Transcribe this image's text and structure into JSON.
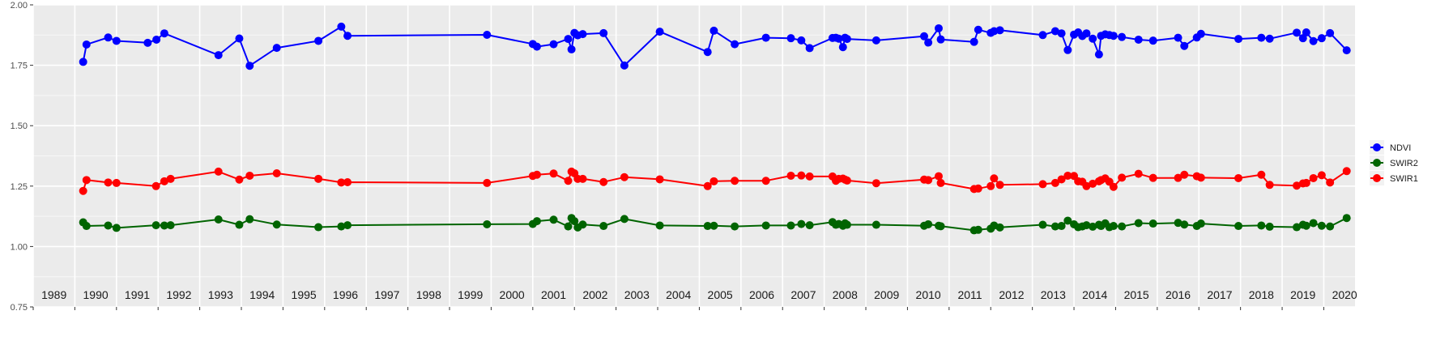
{
  "chart_data": {
    "type": "line",
    "ylim": [
      0.75,
      2.0
    ],
    "yticks": [
      "0.75",
      "1.00",
      "1.25",
      "1.50",
      "1.75",
      "2.00"
    ],
    "year_labels": [
      "1989",
      "1990",
      "1991",
      "1992",
      "1993",
      "1994",
      "1995",
      "1996",
      "1997",
      "1998",
      "1999",
      "2000",
      "2001",
      "2002",
      "2003",
      "2004",
      "2005",
      "2006",
      "2007",
      "2008",
      "2009",
      "2010",
      "2011",
      "2012",
      "2013",
      "2014",
      "2015",
      "2016",
      "2017",
      "2018",
      "2019",
      "2020"
    ],
    "grid": true,
    "legend_position": "right",
    "series": [
      {
        "name": "NDVI",
        "color": "#0000ff",
        "x": [
          1990.2,
          1990.28,
          1990.8,
          1991.0,
          1991.75,
          1991.96,
          1992.15,
          1993.45,
          1993.95,
          1994.2,
          1994.85,
          1995.85,
          1996.4,
          1996.55,
          1999.9,
          2001.0,
          2001.1,
          2001.5,
          2001.85,
          2001.93,
          2002.0,
          2002.08,
          2002.2,
          2002.7,
          2003.2,
          2004.05,
          2005.2,
          2005.35,
          2005.85,
          2006.6,
          2007.2,
          2007.45,
          2007.65,
          2008.2,
          2008.28,
          2008.35,
          2008.45,
          2008.5,
          2008.55,
          2009.25,
          2010.4,
          2010.5,
          2010.75,
          2010.8,
          2011.6,
          2011.7,
          2012.0,
          2012.08,
          2012.22,
          2013.25,
          2013.55,
          2013.7,
          2013.85,
          2014.0,
          2014.1,
          2014.2,
          2014.3,
          2014.45,
          2014.6,
          2014.65,
          2014.75,
          2014.85,
          2014.95,
          2015.15,
          2015.55,
          2015.9,
          2016.5,
          2016.65,
          2016.95,
          2017.05,
          2017.95,
          2018.5,
          2018.7,
          2019.35,
          2019.5,
          2019.58,
          2019.75,
          2019.95,
          2020.15,
          2020.55
        ],
        "y": [
          1.764,
          1.836,
          1.865,
          1.851,
          1.843,
          1.856,
          1.882,
          1.792,
          1.861,
          1.748,
          1.822,
          1.851,
          1.91,
          1.872,
          1.876,
          1.838,
          1.827,
          1.837,
          1.859,
          1.816,
          1.884,
          1.874,
          1.879,
          1.883,
          1.749,
          1.889,
          1.805,
          1.893,
          1.837,
          1.864,
          1.862,
          1.853,
          1.821,
          1.863,
          1.864,
          1.86,
          1.825,
          1.864,
          1.859,
          1.853,
          1.87,
          1.844,
          1.903,
          1.857,
          1.847,
          1.897,
          1.884,
          1.891,
          1.895,
          1.875,
          1.891,
          1.882,
          1.813,
          1.877,
          1.886,
          1.871,
          1.882,
          1.86,
          1.795,
          1.872,
          1.878,
          1.875,
          1.872,
          1.867,
          1.856,
          1.852,
          1.864,
          1.83,
          1.865,
          1.88,
          1.859,
          1.864,
          1.86,
          1.885,
          1.862,
          1.886,
          1.85,
          1.862,
          1.883,
          1.812
        ]
      },
      {
        "name": "SWIR2",
        "color": "#006400",
        "x": [
          1990.2,
          1990.28,
          1990.8,
          1991.0,
          1991.95,
          1992.15,
          1992.3,
          1993.45,
          1993.95,
          1994.2,
          1994.85,
          1995.85,
          1996.4,
          1996.55,
          1999.9,
          2001.0,
          2001.1,
          2001.5,
          2001.85,
          2001.93,
          2002.0,
          2002.08,
          2002.2,
          2002.7,
          2003.2,
          2004.05,
          2005.2,
          2005.35,
          2005.85,
          2006.6,
          2007.2,
          2007.45,
          2007.65,
          2008.2,
          2008.28,
          2008.35,
          2008.45,
          2008.5,
          2008.55,
          2009.25,
          2010.4,
          2010.5,
          2010.75,
          2010.8,
          2011.6,
          2011.7,
          2012.0,
          2012.08,
          2012.22,
          2013.25,
          2013.55,
          2013.7,
          2013.85,
          2014.0,
          2014.1,
          2014.2,
          2014.3,
          2014.45,
          2014.6,
          2014.65,
          2014.75,
          2014.85,
          2014.95,
          2015.15,
          2015.55,
          2015.9,
          2016.5,
          2016.65,
          2016.95,
          2017.05,
          2017.95,
          2018.5,
          2018.7,
          2019.35,
          2019.5,
          2019.58,
          2019.75,
          2019.95,
          2020.15,
          2020.55
        ],
        "y": [
          1.1,
          1.085,
          1.087,
          1.077,
          1.088,
          1.087,
          1.088,
          1.112,
          1.09,
          1.113,
          1.091,
          1.08,
          1.083,
          1.088,
          1.092,
          1.093,
          1.105,
          1.111,
          1.083,
          1.118,
          1.105,
          1.079,
          1.091,
          1.085,
          1.114,
          1.087,
          1.085,
          1.086,
          1.083,
          1.087,
          1.087,
          1.093,
          1.088,
          1.101,
          1.09,
          1.093,
          1.086,
          1.096,
          1.09,
          1.09,
          1.086,
          1.092,
          1.086,
          1.084,
          1.067,
          1.069,
          1.074,
          1.087,
          1.079,
          1.09,
          1.083,
          1.085,
          1.107,
          1.092,
          1.08,
          1.083,
          1.088,
          1.082,
          1.09,
          1.085,
          1.096,
          1.08,
          1.085,
          1.083,
          1.097,
          1.095,
          1.098,
          1.091,
          1.085,
          1.095,
          1.085,
          1.087,
          1.082,
          1.08,
          1.09,
          1.086,
          1.097,
          1.086,
          1.083,
          1.118
        ]
      },
      {
        "name": "SWIR1",
        "color": "#ff0000",
        "x": [
          1990.2,
          1990.28,
          1990.8,
          1991.0,
          1991.95,
          1992.15,
          1992.3,
          1993.45,
          1993.95,
          1994.2,
          1994.85,
          1995.85,
          1996.4,
          1996.55,
          1999.9,
          2001.0,
          2001.1,
          2001.5,
          2001.85,
          2001.93,
          2002.0,
          2002.08,
          2002.2,
          2002.7,
          2003.2,
          2004.05,
          2005.2,
          2005.35,
          2005.85,
          2006.6,
          2007.2,
          2007.45,
          2007.65,
          2008.2,
          2008.28,
          2008.35,
          2008.45,
          2008.5,
          2008.55,
          2009.25,
          2010.4,
          2010.5,
          2010.75,
          2010.8,
          2011.6,
          2011.7,
          2012.0,
          2012.08,
          2012.22,
          2013.25,
          2013.55,
          2013.7,
          2013.85,
          2014.0,
          2014.1,
          2014.2,
          2014.3,
          2014.45,
          2014.6,
          2014.65,
          2014.75,
          2014.85,
          2014.95,
          2015.15,
          2015.55,
          2015.9,
          2016.5,
          2016.65,
          2016.95,
          2017.05,
          2017.95,
          2018.5,
          2018.7,
          2019.35,
          2019.5,
          2019.58,
          2019.75,
          2019.95,
          2020.15,
          2020.55
        ],
        "y": [
          1.23,
          1.275,
          1.265,
          1.263,
          1.25,
          1.27,
          1.28,
          1.31,
          1.277,
          1.293,
          1.303,
          1.28,
          1.265,
          1.266,
          1.263,
          1.292,
          1.297,
          1.302,
          1.272,
          1.31,
          1.303,
          1.28,
          1.28,
          1.267,
          1.287,
          1.278,
          1.25,
          1.27,
          1.272,
          1.272,
          1.293,
          1.294,
          1.29,
          1.29,
          1.272,
          1.28,
          1.281,
          1.277,
          1.273,
          1.262,
          1.277,
          1.275,
          1.291,
          1.263,
          1.238,
          1.24,
          1.25,
          1.282,
          1.255,
          1.258,
          1.263,
          1.278,
          1.293,
          1.292,
          1.27,
          1.268,
          1.25,
          1.26,
          1.27,
          1.275,
          1.282,
          1.268,
          1.247,
          1.285,
          1.301,
          1.284,
          1.284,
          1.297,
          1.291,
          1.285,
          1.283,
          1.297,
          1.255,
          1.252,
          1.261,
          1.263,
          1.283,
          1.295,
          1.265,
          1.312
        ]
      }
    ]
  }
}
